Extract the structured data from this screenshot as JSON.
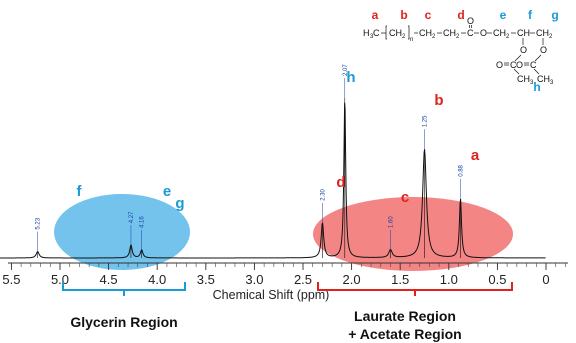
{
  "chart_data": {
    "type": "line",
    "xlabel": "Chemical Shift (ppm)",
    "x_reversed": true,
    "xlim": [
      5.8,
      0.0
    ],
    "x_ticks": [
      "5.5",
      "5.0",
      "4.5",
      "4.0",
      "3.5",
      "3.0",
      "2.5",
      "2.0",
      "1.5",
      "1.0",
      "0.5",
      "0"
    ],
    "x_tick_values": [
      5.5,
      5.0,
      4.5,
      4.0,
      3.5,
      3.0,
      2.5,
      2.0,
      1.5,
      1.0,
      0.5,
      0.0
    ],
    "peaks": [
      {
        "shift": 5.23,
        "label": "5.23",
        "height": 0.04,
        "assignment": "f"
      },
      {
        "shift": 4.27,
        "label": "4.27",
        "height": 0.08,
        "assignment": "e"
      },
      {
        "shift": 4.16,
        "label": "4.16",
        "height": 0.05,
        "assignment": "g"
      },
      {
        "shift": 2.3,
        "label": "2.30",
        "height": 0.22,
        "assignment": "d"
      },
      {
        "shift": 2.07,
        "label": "2.07",
        "height": 1.0,
        "assignment": "h"
      },
      {
        "shift": 1.6,
        "label": "1.60",
        "height": 0.05,
        "assignment": "c"
      },
      {
        "shift": 1.25,
        "label": "1.25",
        "height": 0.68,
        "assignment": "b"
      },
      {
        "shift": 0.88,
        "label": "0.88",
        "height": 0.37,
        "assignment": "a"
      }
    ],
    "regions": [
      {
        "name": "Glycerin Region",
        "from": 5.3,
        "to": 4.15,
        "color": "#5bb8ea"
      },
      {
        "name": "Laurate Region\n+ Acetate Region",
        "from": 2.5,
        "to": 0.5,
        "color": "#f26a6a"
      }
    ]
  },
  "structure": {
    "letters": [
      "a",
      "b",
      "c",
      "d",
      "e",
      "f",
      "g",
      "h"
    ],
    "red_color": "#e0211d",
    "blue_color": "#1a9ad6",
    "chain": [
      "H3C",
      "CH2",
      "CH2",
      "CH2",
      "C",
      "O",
      "CH2",
      "CH",
      "CH2"
    ],
    "subscripts": [
      "3",
      "2",
      "2",
      "2",
      "2",
      "2"
    ],
    "repeat": "n",
    "acetate": [
      "O",
      "C",
      "CH3",
      "O",
      "C",
      "CH3"
    ]
  },
  "region_labels": {
    "glycerin": "Glycerin Region",
    "laurate_line1": "Laurate Region",
    "laurate_line2": "+ Acetate Region"
  }
}
